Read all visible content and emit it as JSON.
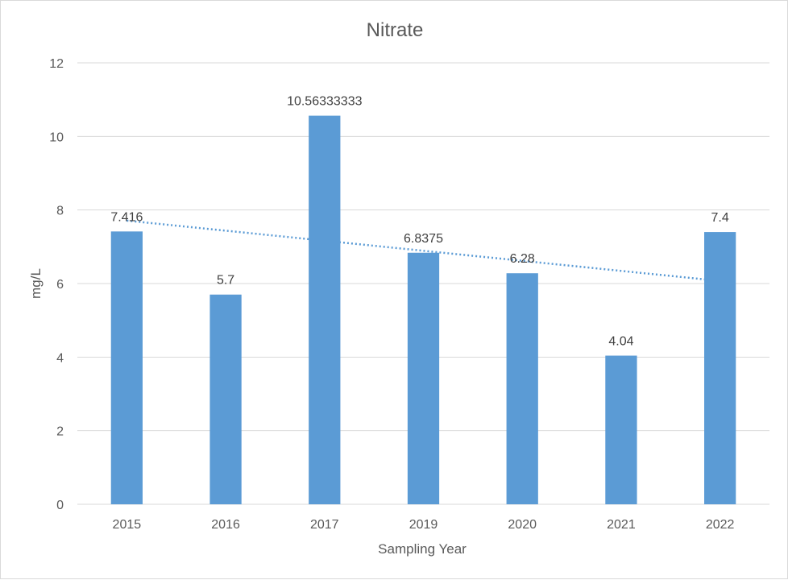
{
  "chart_data": {
    "type": "bar",
    "title": "Nitrate",
    "xlabel": "Sampling Year",
    "ylabel": "mg/L",
    "categories": [
      "2015",
      "2016",
      "2017",
      "2019",
      "2020",
      "2021",
      "2022"
    ],
    "values": [
      7.416,
      5.7,
      10.56333333,
      6.8375,
      6.28,
      4.04,
      7.4
    ],
    "data_labels": [
      "7.416",
      "5.7",
      "10.56333333",
      "6.8375",
      "6.28",
      "4.04",
      "7.4"
    ],
    "ylim": [
      0,
      12
    ],
    "yticks": [
      0,
      2,
      4,
      6,
      8,
      10,
      12
    ],
    "ytick_labels": [
      "0",
      "2",
      "4",
      "6",
      "8",
      "10",
      "12"
    ],
    "grid": true,
    "legend": "none",
    "trendline": {
      "type": "linear",
      "style": "dotted"
    },
    "colors": {
      "bar": "#5b9bd5",
      "trendline": "#5b9bd5",
      "grid": "#d9d9d9",
      "text": "#595959"
    }
  }
}
